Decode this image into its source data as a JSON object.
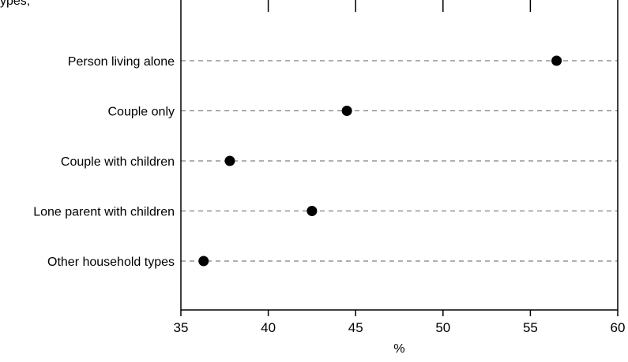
{
  "chart_data": {
    "type": "scatter",
    "orientation": "horizontal-dot-plot",
    "title_fragment": "ypes,",
    "categories": [
      "Person living alone",
      "Couple only",
      "Couple with children",
      "Lone parent with children",
      "Other household types"
    ],
    "values": [
      56.5,
      44.5,
      37.8,
      42.5,
      36.3
    ],
    "xlabel": "%",
    "ylabel": "",
    "xlim": [
      35,
      60
    ],
    "xticks": [
      35,
      40,
      45,
      50,
      55,
      60
    ],
    "grid": "dashed horizontal guide lines per category",
    "legend": "none",
    "colors": {
      "marker": "#000000",
      "guide_line": "#808080",
      "axis": "#000000",
      "background": "#ffffff"
    }
  }
}
